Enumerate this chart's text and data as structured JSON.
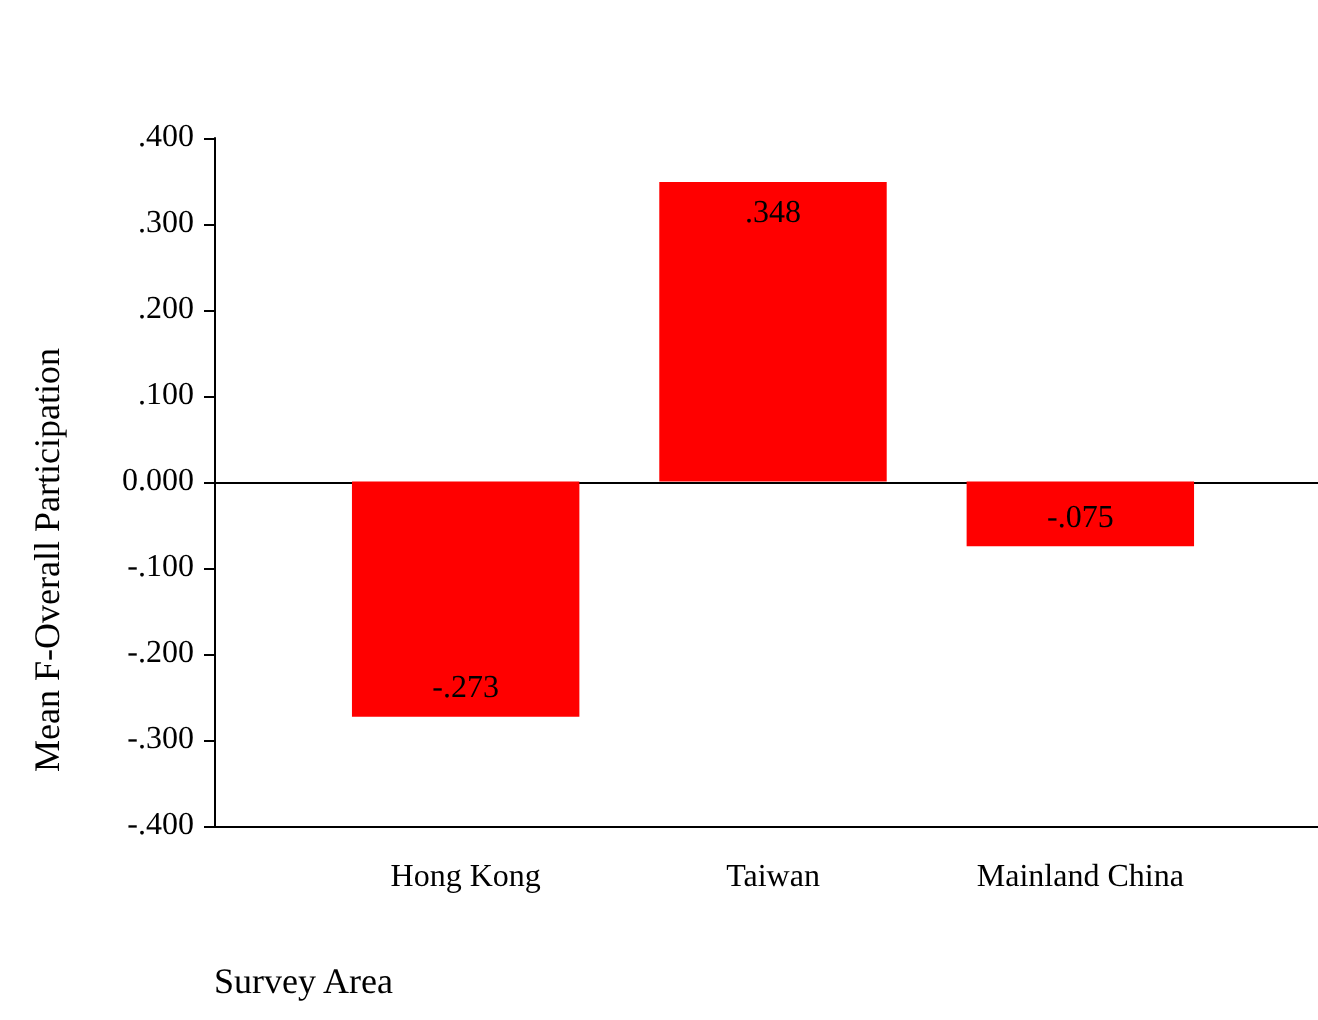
{
  "chart_data": {
    "type": "bar",
    "xlabel": "Survey Area",
    "ylabel": "Mean F-Overall Participation",
    "categories": [
      "Hong Kong",
      "Taiwan",
      "Mainland China"
    ],
    "values": [
      -0.273,
      0.348,
      -0.075
    ],
    "value_labels": [
      "-.273",
      ".348",
      "-.075"
    ],
    "color": "#ff0000",
    "ylim": [
      -0.4,
      0.4
    ],
    "yticks": [
      {
        "value": -0.4,
        "label": "-.400"
      },
      {
        "value": -0.3,
        "label": "-.300"
      },
      {
        "value": -0.2,
        "label": "-.200"
      },
      {
        "value": -0.1,
        "label": "-.100"
      },
      {
        "value": 0,
        "label": "0.000"
      },
      {
        "value": 0.1,
        "label": ".100"
      },
      {
        "value": 0.2,
        "label": ".200"
      },
      {
        "value": 0.3,
        "label": ".300"
      },
      {
        "value": 0.4,
        "label": ".400"
      }
    ],
    "ref_lines": [
      {
        "axis": "y",
        "value": 0,
        "color": "#000000"
      }
    ],
    "grid": false,
    "legend": false
  }
}
